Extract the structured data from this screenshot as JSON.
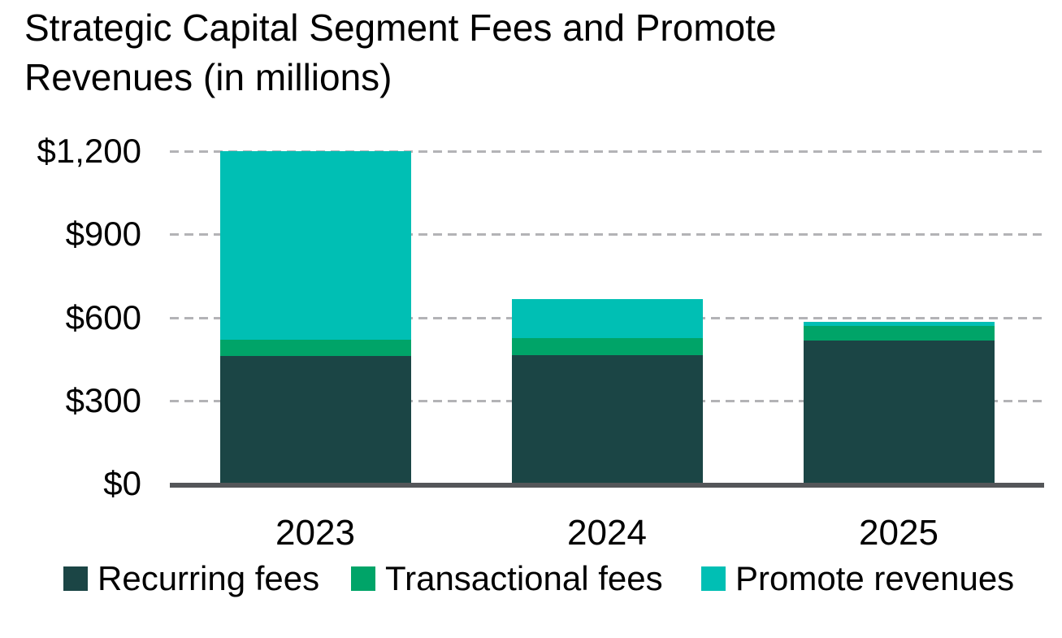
{
  "title": {
    "line1": "Strategic Capital Segment Fees and Promote",
    "line2": "Revenues (in millions)"
  },
  "chart_data": {
    "type": "bar",
    "stacked": true,
    "title": "Strategic Capital Segment Fees and Promote Revenues (in millions)",
    "categories": [
      "2023",
      "2024",
      "2025"
    ],
    "series": [
      {
        "name": "Recurring fees",
        "color": "#1B4545",
        "values": [
          460,
          465,
          515
        ]
      },
      {
        "name": "Transactional fees",
        "color": "#00A468",
        "values": [
          60,
          60,
          55
        ]
      },
      {
        "name": "Promote revenues",
        "color": "#00BFB4",
        "values": [
          680,
          140,
          15
        ]
      }
    ],
    "totals": [
      1200,
      665,
      585
    ],
    "y_axis": {
      "tick_labels": [
        "$0",
        "$300",
        "$600",
        "$900",
        "$1,200"
      ],
      "tick_values": [
        0,
        300,
        600,
        900,
        1200
      ],
      "ylim": [
        0,
        1200
      ],
      "unit": "USD millions"
    },
    "xlabel": "",
    "ylabel": "",
    "grid": "horizontal-dashed",
    "legend_position": "bottom",
    "colors": {
      "axis_line": "#545659",
      "gridline": "#B3B3B6",
      "text": "#000000",
      "background": "#FFFFFF"
    }
  }
}
